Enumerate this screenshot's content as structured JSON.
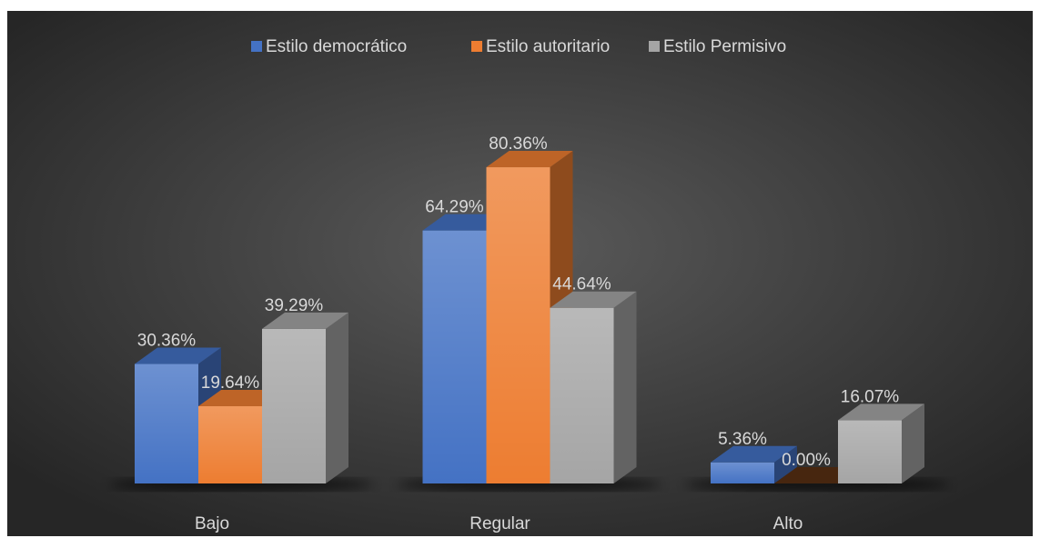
{
  "chart_data": {
    "type": "bar3d",
    "categories": [
      "Bajo",
      "Regular",
      "Alto"
    ],
    "series": [
      {
        "name": "Estilo democrático",
        "color": "#4472c4",
        "values": [
          30.36,
          64.29,
          5.36
        ],
        "value_labels": [
          "30.36%",
          "64.29%",
          "5.36%"
        ]
      },
      {
        "name": "Estilo autoritario",
        "color": "#ed7d31",
        "values": [
          19.64,
          80.36,
          0.0
        ],
        "value_labels": [
          "19.64%",
          "80.36%",
          "0.00%"
        ]
      },
      {
        "name": "Estilo Permisivo",
        "color": "#a5a5a5",
        "values": [
          39.29,
          44.64,
          16.07
        ],
        "value_labels": [
          "39.29%",
          "44.64%",
          "16.07%"
        ]
      }
    ],
    "legend": "top"
  }
}
